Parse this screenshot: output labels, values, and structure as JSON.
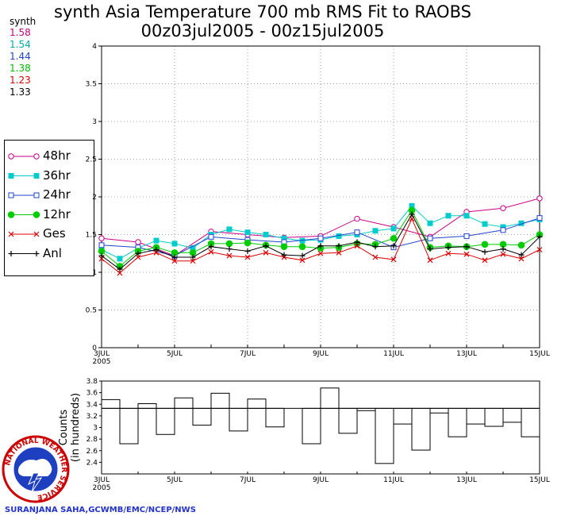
{
  "title": {
    "line1": "synth Asia Temperature 700 mb RMS Fit to RAOBS",
    "line2": "00z03jul2005 - 00z15jul2005"
  },
  "stats": {
    "label": "synth",
    "values": [
      {
        "text": "1.58",
        "color": "#cc0077"
      },
      {
        "text": "1.54",
        "color": "#00aaaa"
      },
      {
        "text": "1.44",
        "color": "#2244cc"
      },
      {
        "text": "1.38",
        "color": "#00bb00"
      },
      {
        "text": "1.23",
        "color": "#dd0000"
      },
      {
        "text": "1.33",
        "color": "#000000"
      }
    ]
  },
  "legend": [
    {
      "label": "48hr",
      "color": "#cc0088",
      "marker": "open-circle"
    },
    {
      "label": "36hr",
      "color": "#00cccc",
      "marker": "filled-square"
    },
    {
      "label": "24hr",
      "color": "#2244cc",
      "marker": "open-square"
    },
    {
      "label": "12hr",
      "color": "#00cc00",
      "marker": "filled-circle"
    },
    {
      "label": "Ges",
      "color": "#dd0000",
      "marker": "x"
    },
    {
      "label": "Anl",
      "color": "#000000",
      "marker": "plus"
    }
  ],
  "footer": "SURANJANA SAHA,GCWMB/EMC/NCEP/NWS",
  "logo_text": "NATIONAL WEATHER SERVICE",
  "chart_data": [
    {
      "type": "line",
      "title": "synth Asia Temperature 700 mb RMS Fit to RAOBS",
      "subtitle": "00z03jul2005 - 00z15jul2005",
      "xlim": [
        0,
        12
      ],
      "ylim": [
        0,
        4
      ],
      "yticks": [
        "0",
        "0.5",
        "1",
        "1.5",
        "2",
        "2.5",
        "3",
        "3.5",
        "4"
      ],
      "xticks": [
        {
          "x": 0,
          "label": "3JUL",
          "sub": "2005"
        },
        {
          "x": 2,
          "label": "5JUL",
          "sub": ""
        },
        {
          "x": 4,
          "label": "7JUL",
          "sub": ""
        },
        {
          "x": 6,
          "label": "9JUL",
          "sub": ""
        },
        {
          "x": 8,
          "label": "11JUL",
          "sub": ""
        },
        {
          "x": 10,
          "label": "13JUL",
          "sub": ""
        },
        {
          "x": 12,
          "label": "15JUL",
          "sub": ""
        }
      ],
      "grid": true,
      "series": [
        {
          "name": "48hr",
          "x": [
            0,
            1,
            2,
            3,
            4,
            5,
            6,
            7,
            8,
            9,
            10,
            11,
            12
          ],
          "values": [
            1.45,
            1.4,
            1.22,
            1.54,
            1.5,
            1.46,
            1.48,
            1.71,
            1.6,
            1.47,
            1.8,
            1.85,
            1.98
          ]
        },
        {
          "name": "36hr",
          "x": [
            0,
            0.5,
            1,
            1.5,
            2,
            2.5,
            3,
            3.5,
            4,
            4.5,
            5,
            5.5,
            6,
            6.5,
            7,
            7.5,
            8,
            8.5,
            9,
            9.5,
            10,
            10.5,
            11,
            11.5,
            12
          ],
          "values": [
            1.3,
            1.18,
            1.32,
            1.42,
            1.38,
            1.32,
            1.5,
            1.57,
            1.53,
            1.5,
            1.45,
            1.42,
            1.43,
            1.48,
            1.5,
            1.55,
            1.58,
            1.88,
            1.65,
            1.75,
            1.75,
            1.64,
            1.6,
            1.65,
            1.7
          ]
        },
        {
          "name": "24hr",
          "x": [
            0,
            1,
            2,
            3,
            4,
            5,
            6,
            7,
            8,
            9,
            10,
            11,
            12
          ],
          "values": [
            1.36,
            1.33,
            1.22,
            1.47,
            1.43,
            1.4,
            1.45,
            1.53,
            1.33,
            1.45,
            1.48,
            1.56,
            1.72
          ]
        },
        {
          "name": "12hr",
          "x": [
            0,
            0.5,
            1,
            1.5,
            2,
            2.5,
            3,
            3.5,
            4,
            4.5,
            5,
            5.5,
            6,
            6.5,
            7,
            7.5,
            8,
            8.5,
            9,
            9.5,
            10,
            10.5,
            11,
            11.5,
            12
          ],
          "values": [
            1.28,
            1.08,
            1.28,
            1.33,
            1.26,
            1.26,
            1.38,
            1.38,
            1.39,
            1.36,
            1.34,
            1.34,
            1.32,
            1.33,
            1.38,
            1.37,
            1.45,
            1.82,
            1.33,
            1.35,
            1.34,
            1.37,
            1.37,
            1.36,
            1.5
          ]
        },
        {
          "name": "Ges",
          "x": [
            0,
            0.5,
            1,
            1.5,
            2,
            2.5,
            3,
            3.5,
            4,
            4.5,
            5,
            5.5,
            6,
            6.5,
            7,
            7.5,
            8,
            8.5,
            9,
            9.5,
            10,
            10.5,
            11,
            11.5,
            12
          ],
          "values": [
            1.18,
            0.99,
            1.2,
            1.26,
            1.15,
            1.15,
            1.27,
            1.22,
            1.2,
            1.26,
            1.2,
            1.16,
            1.25,
            1.26,
            1.35,
            1.2,
            1.17,
            1.71,
            1.16,
            1.25,
            1.24,
            1.16,
            1.24,
            1.18,
            1.3
          ]
        },
        {
          "name": "Anl",
          "x": [
            0,
            0.5,
            1,
            1.5,
            2,
            2.5,
            3,
            3.5,
            4,
            4.5,
            5,
            5.5,
            6,
            6.5,
            7,
            7.5,
            8,
            8.5,
            9,
            9.5,
            10,
            10.5,
            11,
            11.5,
            12
          ],
          "values": [
            1.22,
            1.04,
            1.25,
            1.3,
            1.2,
            1.2,
            1.34,
            1.31,
            1.28,
            1.35,
            1.23,
            1.22,
            1.35,
            1.35,
            1.4,
            1.34,
            1.35,
            1.77,
            1.31,
            1.33,
            1.34,
            1.27,
            1.31,
            1.23,
            1.47
          ]
        }
      ]
    },
    {
      "type": "bar",
      "ylabel": "Counts (in hundreds)",
      "xlim": [
        0,
        12
      ],
      "ylim": [
        2.2,
        3.8
      ],
      "yticks": [
        "2.4",
        "2.6",
        "2.8",
        "3",
        "3.2",
        "3.4",
        "3.6",
        "3.8"
      ],
      "reference_line": 3.33,
      "bar_width": 0.5,
      "x": [
        0,
        0.5,
        1,
        1.5,
        2,
        2.5,
        3,
        3.5,
        4,
        4.5,
        5,
        5.5,
        6,
        6.5,
        7,
        7.5,
        8,
        8.5,
        9,
        9.5,
        10,
        10.5,
        11,
        11.5
      ],
      "values": [
        3.48,
        2.72,
        3.41,
        2.88,
        3.51,
        3.04,
        3.59,
        2.94,
        3.49,
        3.01,
        3.33,
        2.72,
        3.68,
        2.9,
        3.29,
        2.38,
        3.06,
        2.61,
        3.25,
        2.84,
        3.06,
        3.02,
        3.09,
        2.84
      ]
    }
  ]
}
